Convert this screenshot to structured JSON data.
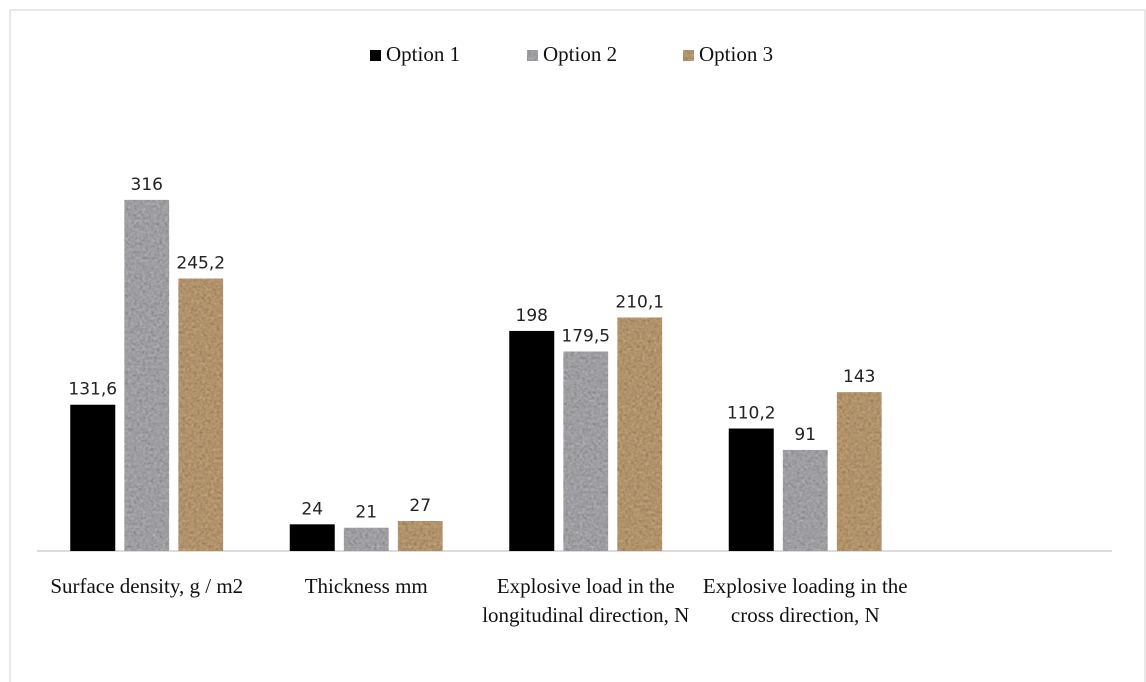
{
  "chart_data": {
    "type": "bar",
    "categories": [
      "Surface density, g / m2",
      "Thickness mm",
      "Explosive load in the longitudinal direction, N",
      "Explosive loading in the cross direction, N"
    ],
    "series": [
      {
        "name": "Option 1",
        "color": "#000000",
        "values": [
          131.6,
          24,
          198,
          110.2
        ],
        "value_labels": [
          "131,6",
          "24",
          "198",
          "110,2"
        ]
      },
      {
        "name": "Option 2",
        "color": "#b4b4b8",
        "values": [
          316,
          21,
          179.5,
          91
        ],
        "value_labels": [
          "316",
          "21",
          "179,5",
          "91"
        ]
      },
      {
        "name": "Option 3",
        "color": "#c9a77a",
        "values": [
          245.2,
          27,
          210.1,
          143
        ],
        "value_labels": [
          "245,2",
          "27",
          "210,1",
          "143"
        ]
      }
    ],
    "ylim": [
      0,
      350
    ],
    "legend": "top"
  }
}
